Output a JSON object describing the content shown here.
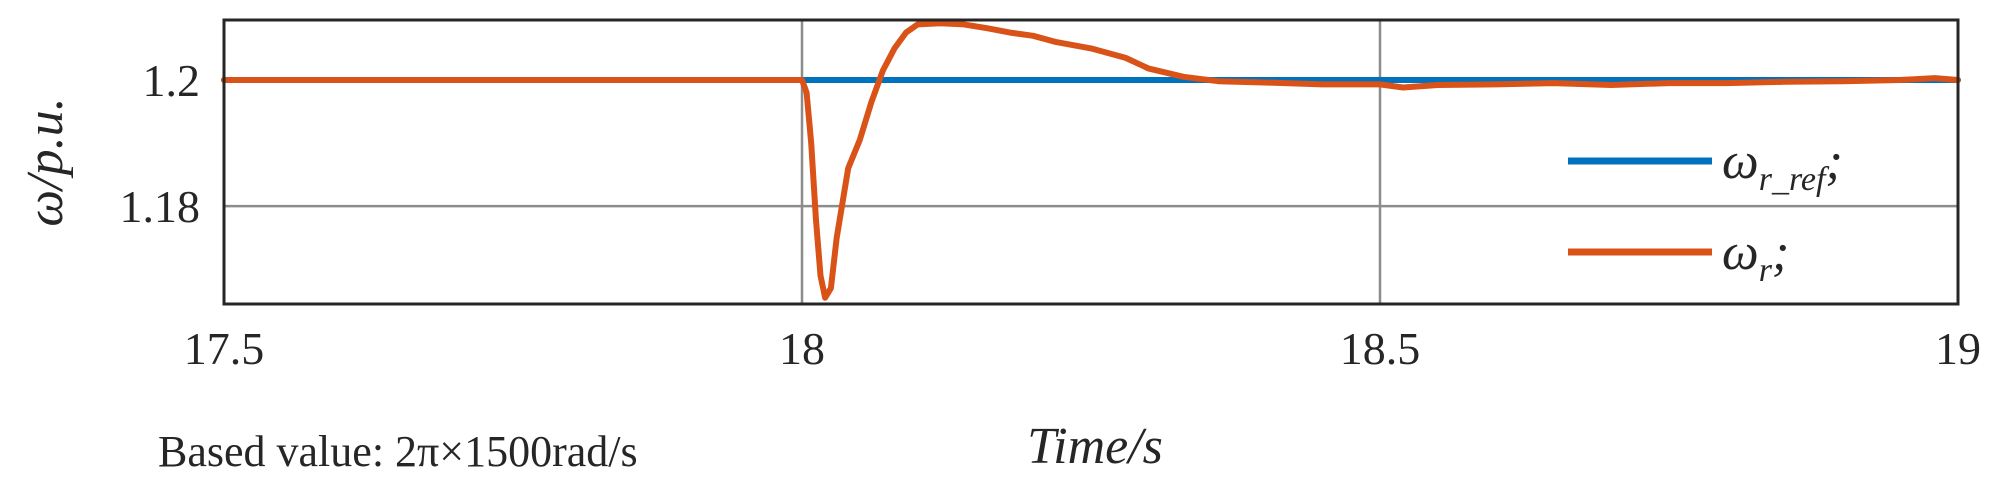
{
  "chart_data": {
    "type": "line",
    "xlabel": "Time/s",
    "ylabel": "ω/p.u.",
    "xlim": [
      17.5,
      19
    ],
    "ylim": [
      1.1645,
      1.2095
    ],
    "x_ticks": [
      17.5,
      18,
      18.5,
      19
    ],
    "x_tick_labels": [
      "17.5",
      "18",
      "18.5",
      "19"
    ],
    "y_ticks": [
      1.18,
      1.2
    ],
    "y_tick_labels": [
      "1.18",
      "1.2"
    ],
    "grid": true,
    "legend_position": "right",
    "footnote": "Based value: 2π×1500rad/s",
    "series": [
      {
        "name": "ω_r_ref;",
        "legend_main": "ω",
        "legend_sub": "r_ref",
        "legend_suffix": ";",
        "color": "#0072BD",
        "x": [
          17.5,
          18.0,
          18.0,
          19.0
        ],
        "y": [
          1.2,
          1.2,
          1.2,
          1.2
        ]
      },
      {
        "name": "ω_r;",
        "legend_main": "ω",
        "legend_sub": "r",
        "legend_suffix": ";",
        "color": "#D95319",
        "x": [
          17.5,
          17.6,
          17.7,
          17.8,
          17.9,
          18.0,
          18.004,
          18.008,
          18.012,
          18.016,
          18.02,
          18.025,
          18.03,
          18.04,
          18.05,
          18.06,
          18.07,
          18.08,
          18.09,
          18.1,
          18.12,
          18.14,
          18.16,
          18.18,
          18.2,
          18.22,
          18.25,
          18.28,
          18.3,
          18.33,
          18.36,
          18.4,
          18.45,
          18.5,
          18.52,
          18.55,
          18.6,
          18.65,
          18.7,
          18.75,
          18.8,
          18.85,
          18.9,
          18.95,
          18.98,
          19.0
        ],
        "y": [
          1.2,
          1.2,
          1.2,
          1.2,
          1.2,
          1.2,
          1.198,
          1.19,
          1.178,
          1.169,
          1.1655,
          1.167,
          1.175,
          1.186,
          1.1905,
          1.1965,
          1.2015,
          1.205,
          1.2075,
          1.2088,
          1.209,
          1.2088,
          1.2082,
          1.2075,
          1.207,
          1.206,
          1.205,
          1.2035,
          1.2018,
          1.2005,
          1.1998,
          1.1996,
          1.1993,
          1.1993,
          1.1988,
          1.1992,
          1.1993,
          1.1995,
          1.1992,
          1.1995,
          1.1995,
          1.1997,
          1.1998,
          1.2,
          1.2003,
          1.2
        ]
      }
    ]
  }
}
